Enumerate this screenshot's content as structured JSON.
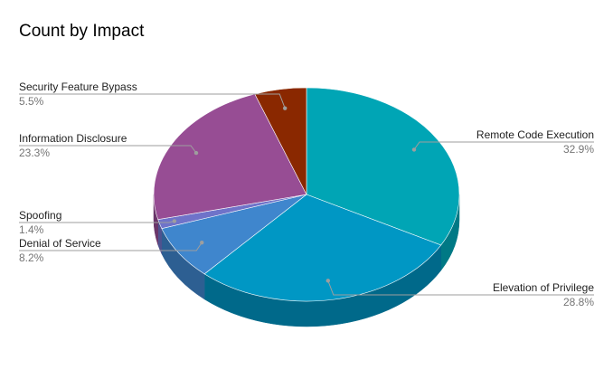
{
  "chart_data": {
    "type": "pie",
    "title": "Count by Impact",
    "slices": [
      {
        "label": "Remote Code Execution",
        "percent": "32.9%",
        "value": 32.9,
        "color": "#00A5B5",
        "side_color": "#007985"
      },
      {
        "label": "Elevation of Privilege",
        "percent": "28.8%",
        "value": 28.8,
        "color": "#0097C4",
        "side_color": "#00698A"
      },
      {
        "label": "Denial of Service",
        "percent": "8.2%",
        "value": 8.2,
        "color": "#3F86CD",
        "side_color": "#2D5F92"
      },
      {
        "label": "Spoofing",
        "percent": "1.4%",
        "value": 1.4,
        "color": "#6F73C9",
        "side_color": "#4F528F"
      },
      {
        "label": "Information Disclosure",
        "percent": "23.3%",
        "value": 23.3,
        "color": "#974D94",
        "side_color": "#6B376A"
      },
      {
        "label": "Security Feature Bypass",
        "percent": "5.5%",
        "value": 5.5,
        "color": "#8A2800",
        "side_color": "#621C00"
      }
    ],
    "legend": "none",
    "style": "3d-pie"
  }
}
